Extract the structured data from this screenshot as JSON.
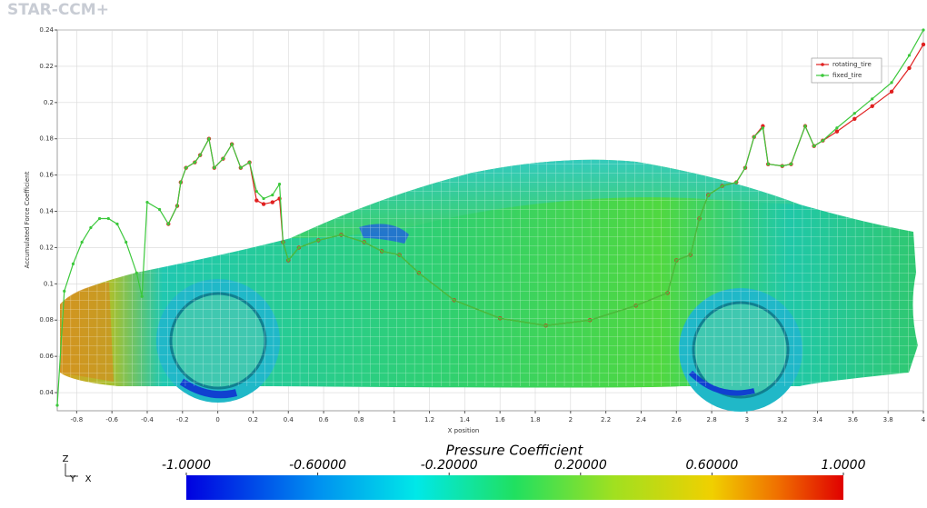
{
  "brand": "STAR-CCM+",
  "axes_triad": {
    "z": "Z",
    "y": "Y",
    "x": "X"
  },
  "chart_data": {
    "type": "line",
    "x_label": "X position",
    "y_label": "Accumulated Force Coefficient",
    "xlim": [
      -0.91,
      4.0
    ],
    "ylim": [
      0.03,
      0.24
    ],
    "xticks": [
      -0.8,
      -0.6,
      -0.4,
      -0.2,
      0,
      0.2,
      0.4,
      0.6,
      0.8,
      1,
      1.2,
      1.4,
      1.6,
      1.8,
      2,
      2.2,
      2.4,
      2.6,
      2.8,
      3,
      3.2,
      3.4,
      3.6,
      3.8,
      4
    ],
    "yticks": [
      0.04,
      0.06,
      0.08,
      0.1,
      0.12,
      0.14,
      0.16,
      0.18,
      0.2,
      0.22,
      0.24
    ],
    "grid": true,
    "legend": "upper right",
    "x": [
      -0.91,
      -0.87,
      -0.82,
      -0.77,
      -0.72,
      -0.67,
      -0.62,
      -0.57,
      -0.52,
      -0.46,
      -0.43,
      -0.4,
      -0.33,
      -0.28,
      -0.23,
      -0.21,
      -0.18,
      -0.13,
      -0.1,
      -0.05,
      -0.02,
      0.03,
      0.08,
      0.13,
      0.18,
      0.22,
      0.26,
      0.31,
      0.35,
      0.37,
      0.4,
      0.46,
      0.57,
      0.7,
      0.83,
      0.93,
      1.03,
      1.14,
      1.34,
      1.6,
      1.86,
      2.11,
      2.37,
      2.55,
      2.6,
      2.68,
      2.73,
      2.78,
      2.86,
      2.94,
      2.99,
      3.04,
      3.09,
      3.12,
      3.2,
      3.25,
      3.33,
      3.38,
      3.43,
      3.51,
      3.61,
      3.71,
      3.82,
      3.92,
      4.0
    ],
    "series": [
      {
        "name": "rotating_tire",
        "color": "#e02020",
        "values": [
          null,
          null,
          null,
          null,
          null,
          null,
          null,
          null,
          null,
          null,
          null,
          null,
          null,
          0.133,
          0.143,
          0.156,
          0.164,
          0.167,
          0.171,
          0.18,
          0.164,
          0.169,
          0.177,
          0.164,
          0.167,
          0.146,
          0.144,
          0.145,
          0.147,
          0.123,
          0.113,
          0.12,
          0.124,
          0.127,
          0.123,
          0.118,
          0.116,
          0.106,
          0.091,
          0.081,
          0.077,
          0.08,
          0.088,
          0.095,
          0.113,
          0.116,
          0.136,
          0.149,
          0.154,
          0.156,
          0.164,
          0.181,
          0.187,
          0.166,
          0.165,
          0.166,
          0.187,
          0.176,
          0.179,
          0.184,
          0.191,
          0.198,
          0.206,
          0.219,
          0.232
        ]
      },
      {
        "name": "fixed_tire",
        "color": "#3cc83c",
        "values": [
          0.033,
          0.096,
          0.111,
          0.123,
          0.131,
          0.136,
          0.136,
          0.133,
          0.123,
          0.106,
          0.093,
          0.145,
          0.141,
          0.133,
          0.143,
          0.156,
          0.164,
          0.167,
          0.171,
          0.18,
          0.164,
          0.169,
          0.177,
          0.164,
          0.167,
          0.151,
          0.147,
          0.149,
          0.155,
          0.123,
          0.113,
          0.12,
          0.124,
          0.127,
          0.123,
          0.118,
          0.116,
          0.106,
          0.091,
          0.081,
          0.077,
          0.08,
          0.088,
          0.095,
          0.113,
          0.116,
          0.136,
          0.149,
          0.154,
          0.156,
          0.164,
          0.181,
          0.186,
          0.166,
          0.165,
          0.166,
          0.187,
          0.176,
          0.179,
          0.186,
          0.194,
          0.202,
          0.211,
          0.226,
          0.24
        ]
      }
    ],
    "colorbar": {
      "title": "Pressure Coefficient",
      "range": [
        -1,
        1
      ],
      "ticks": [
        {
          "value": -1,
          "label": "-1.0000"
        },
        {
          "value": -0.6,
          "label": "-0.60000"
        },
        {
          "value": -0.2,
          "label": "-0.20000"
        },
        {
          "value": 0.2,
          "label": "0.20000"
        },
        {
          "value": 0.6,
          "label": "0.60000"
        },
        {
          "value": 1,
          "label": "1.0000"
        }
      ]
    }
  }
}
